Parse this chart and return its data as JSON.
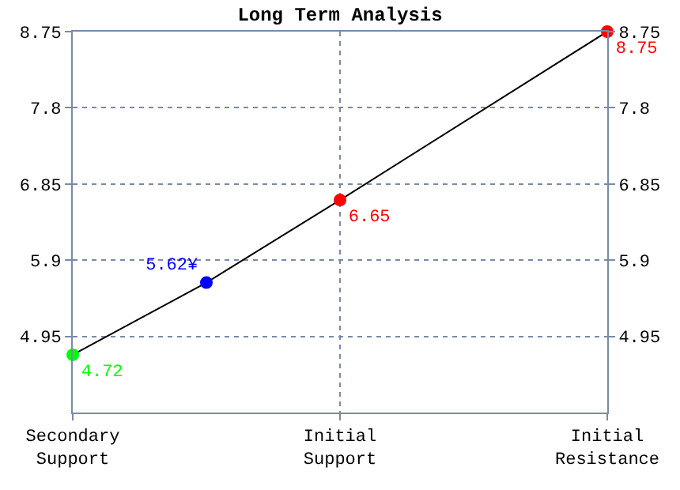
{
  "chart_data": {
    "type": "line",
    "title": "Long Term Analysis",
    "categories": [
      "Secondary\nSupport",
      null,
      "Initial\nSupport",
      null,
      "Initial\nResistance"
    ],
    "series": [
      {
        "color": "#000000",
        "colors": [
          "#00ff00",
          "#0000ff",
          "#ff0000",
          "#ff0000",
          "#ff0000"
        ],
        "values": [
          4.72,
          5.62,
          6.65,
          null,
          8.75
        ],
        "value_labels": [
          "4.72",
          "5.62¥",
          "6.65",
          null,
          "8.75"
        ]
      }
    ],
    "ylim": [
      4.0,
      8.75
    ],
    "yticks": [
      4.95,
      5.9,
      6.85,
      7.8,
      8.75
    ],
    "y2lim": [
      4.0,
      8.75
    ],
    "y2ticks": [
      4.95,
      5.9,
      6.85,
      7.8,
      8.75
    ],
    "grid": true,
    "marker": "circle",
    "line_style": "solid",
    "legend": false
  }
}
